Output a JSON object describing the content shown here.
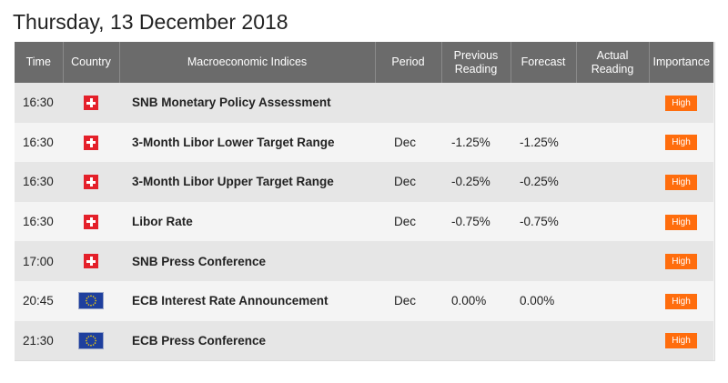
{
  "page": {
    "title": "Thursday, 13 December 2018"
  },
  "table": {
    "headers": {
      "time": "Time",
      "country": "Country",
      "event": "Macroeconomic Indices",
      "period": "Period",
      "previous_line1": "Previous",
      "previous_line2": "Reading",
      "forecast": "Forecast",
      "actual_line1": "Actual",
      "actual_line2": "Reading",
      "importance": "Importance"
    },
    "rows": [
      {
        "time": "16:30",
        "country_icon": "switzerland-flag-icon",
        "event": "SNB Monetary Policy Assessment",
        "period": "",
        "previous": "",
        "forecast": "",
        "actual": "",
        "importance": "High"
      },
      {
        "time": "16:30",
        "country_icon": "switzerland-flag-icon",
        "event": "3-Month Libor Lower Target Range",
        "period": "Dec",
        "previous": "-1.25%",
        "forecast": "-1.25%",
        "actual": "",
        "importance": "High"
      },
      {
        "time": "16:30",
        "country_icon": "switzerland-flag-icon",
        "event": "3-Month Libor Upper Target Range",
        "period": "Dec",
        "previous": "-0.25%",
        "forecast": "-0.25%",
        "actual": "",
        "importance": "High"
      },
      {
        "time": "16:30",
        "country_icon": "switzerland-flag-icon",
        "event": "Libor Rate",
        "period": "Dec",
        "previous": "-0.75%",
        "forecast": "-0.75%",
        "actual": "",
        "importance": "High"
      },
      {
        "time": "17:00",
        "country_icon": "switzerland-flag-icon",
        "event": "SNB Press Conference",
        "period": "",
        "previous": "",
        "forecast": "",
        "actual": "",
        "importance": "High"
      },
      {
        "time": "20:45",
        "country_icon": "eu-flag-icon",
        "event": "ECB Interest Rate Announcement",
        "period": "Dec",
        "previous": "0.00%",
        "forecast": "0.00%",
        "actual": "",
        "importance": "High"
      },
      {
        "time": "21:30",
        "country_icon": "eu-flag-icon",
        "event": "ECB Press Conference",
        "period": "",
        "previous": "",
        "forecast": "",
        "actual": "",
        "importance": "High"
      }
    ]
  },
  "colors": {
    "header_bg": "#6b6b6b",
    "row_alt_bg": "#e6e6e6",
    "row_bg": "#f4f4f4",
    "high_badge": "#ff6d0d",
    "swiss_red": "#e4202a",
    "eu_blue": "#1e3f9e"
  }
}
